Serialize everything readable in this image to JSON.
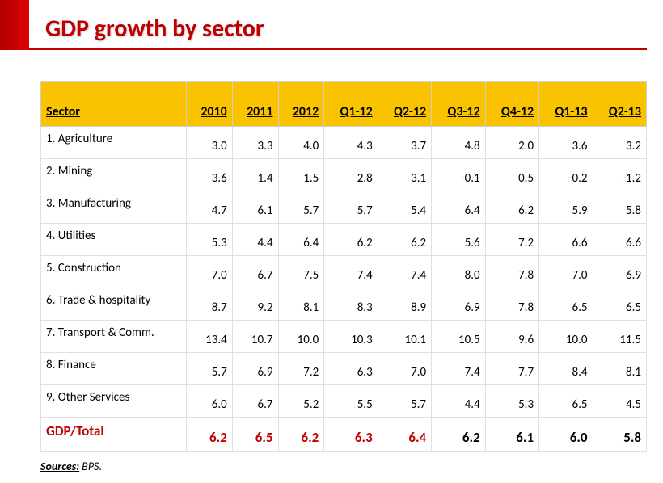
{
  "title": "GDP growth by sector",
  "header_bg": "#f9c300",
  "accent_color": "#c00000",
  "columns": [
    "Sector",
    "2010",
    "2011",
    "2012",
    "Q1-12",
    "Q2-12",
    "Q3-12",
    "Q4-12",
    "Q1-13",
    "Q2-13"
  ],
  "rows": [
    {
      "sector": "1. Agriculture",
      "values": [
        "3.0",
        "3.3",
        "4.0",
        "4.3",
        "3.7",
        "4.8",
        "2.0",
        "3.6",
        "3.2"
      ]
    },
    {
      "sector": "2. Mining",
      "values": [
        "3.6",
        "1.4",
        "1.5",
        "2.8",
        "3.1",
        "-0.1",
        "0.5",
        "-0.2",
        "-1.2"
      ]
    },
    {
      "sector": "3. Manufacturing",
      "values": [
        "4.7",
        "6.1",
        "5.7",
        "5.7",
        "5.4",
        "6.4",
        "6.2",
        "5.9",
        "5.8"
      ]
    },
    {
      "sector": "4. Utilities",
      "values": [
        "5.3",
        "4.4",
        "6.4",
        "6.2",
        "6.2",
        "5.6",
        "7.2",
        "6.6",
        "6.6"
      ]
    },
    {
      "sector": "5. Construction",
      "values": [
        "7.0",
        "6.7",
        "7.5",
        "7.4",
        "7.4",
        "8.0",
        "7.8",
        "7.0",
        "6.9"
      ]
    },
    {
      "sector": "6. Trade & hospitality",
      "values": [
        "8.7",
        "9.2",
        "8.1",
        "8.3",
        "8.9",
        "6.9",
        "7.8",
        "6.5",
        "6.5"
      ]
    },
    {
      "sector": "7. Transport & Comm.",
      "values": [
        "13.4",
        "10.7",
        "10.0",
        "10.3",
        "10.1",
        "10.5",
        "9.6",
        "10.0",
        "11.5"
      ]
    },
    {
      "sector": "8. Finance",
      "values": [
        "5.7",
        "6.9",
        "7.2",
        "6.3",
        "7.0",
        "7.4",
        "7.7",
        "8.4",
        "8.1"
      ]
    },
    {
      "sector": "9. Other Services",
      "values": [
        "6.0",
        "6.7",
        "5.2",
        "5.5",
        "5.7",
        "4.4",
        "5.3",
        "6.5",
        "4.5"
      ]
    }
  ],
  "total": {
    "label": "GDP/Total",
    "values": [
      "6.2",
      "6.5",
      "6.2",
      "6.3",
      "6.4",
      "6.2",
      "6.1",
      "6.0",
      "5.8"
    ],
    "red_count": 5
  },
  "sources_label": "Sources:",
  "sources_text": " BPS."
}
